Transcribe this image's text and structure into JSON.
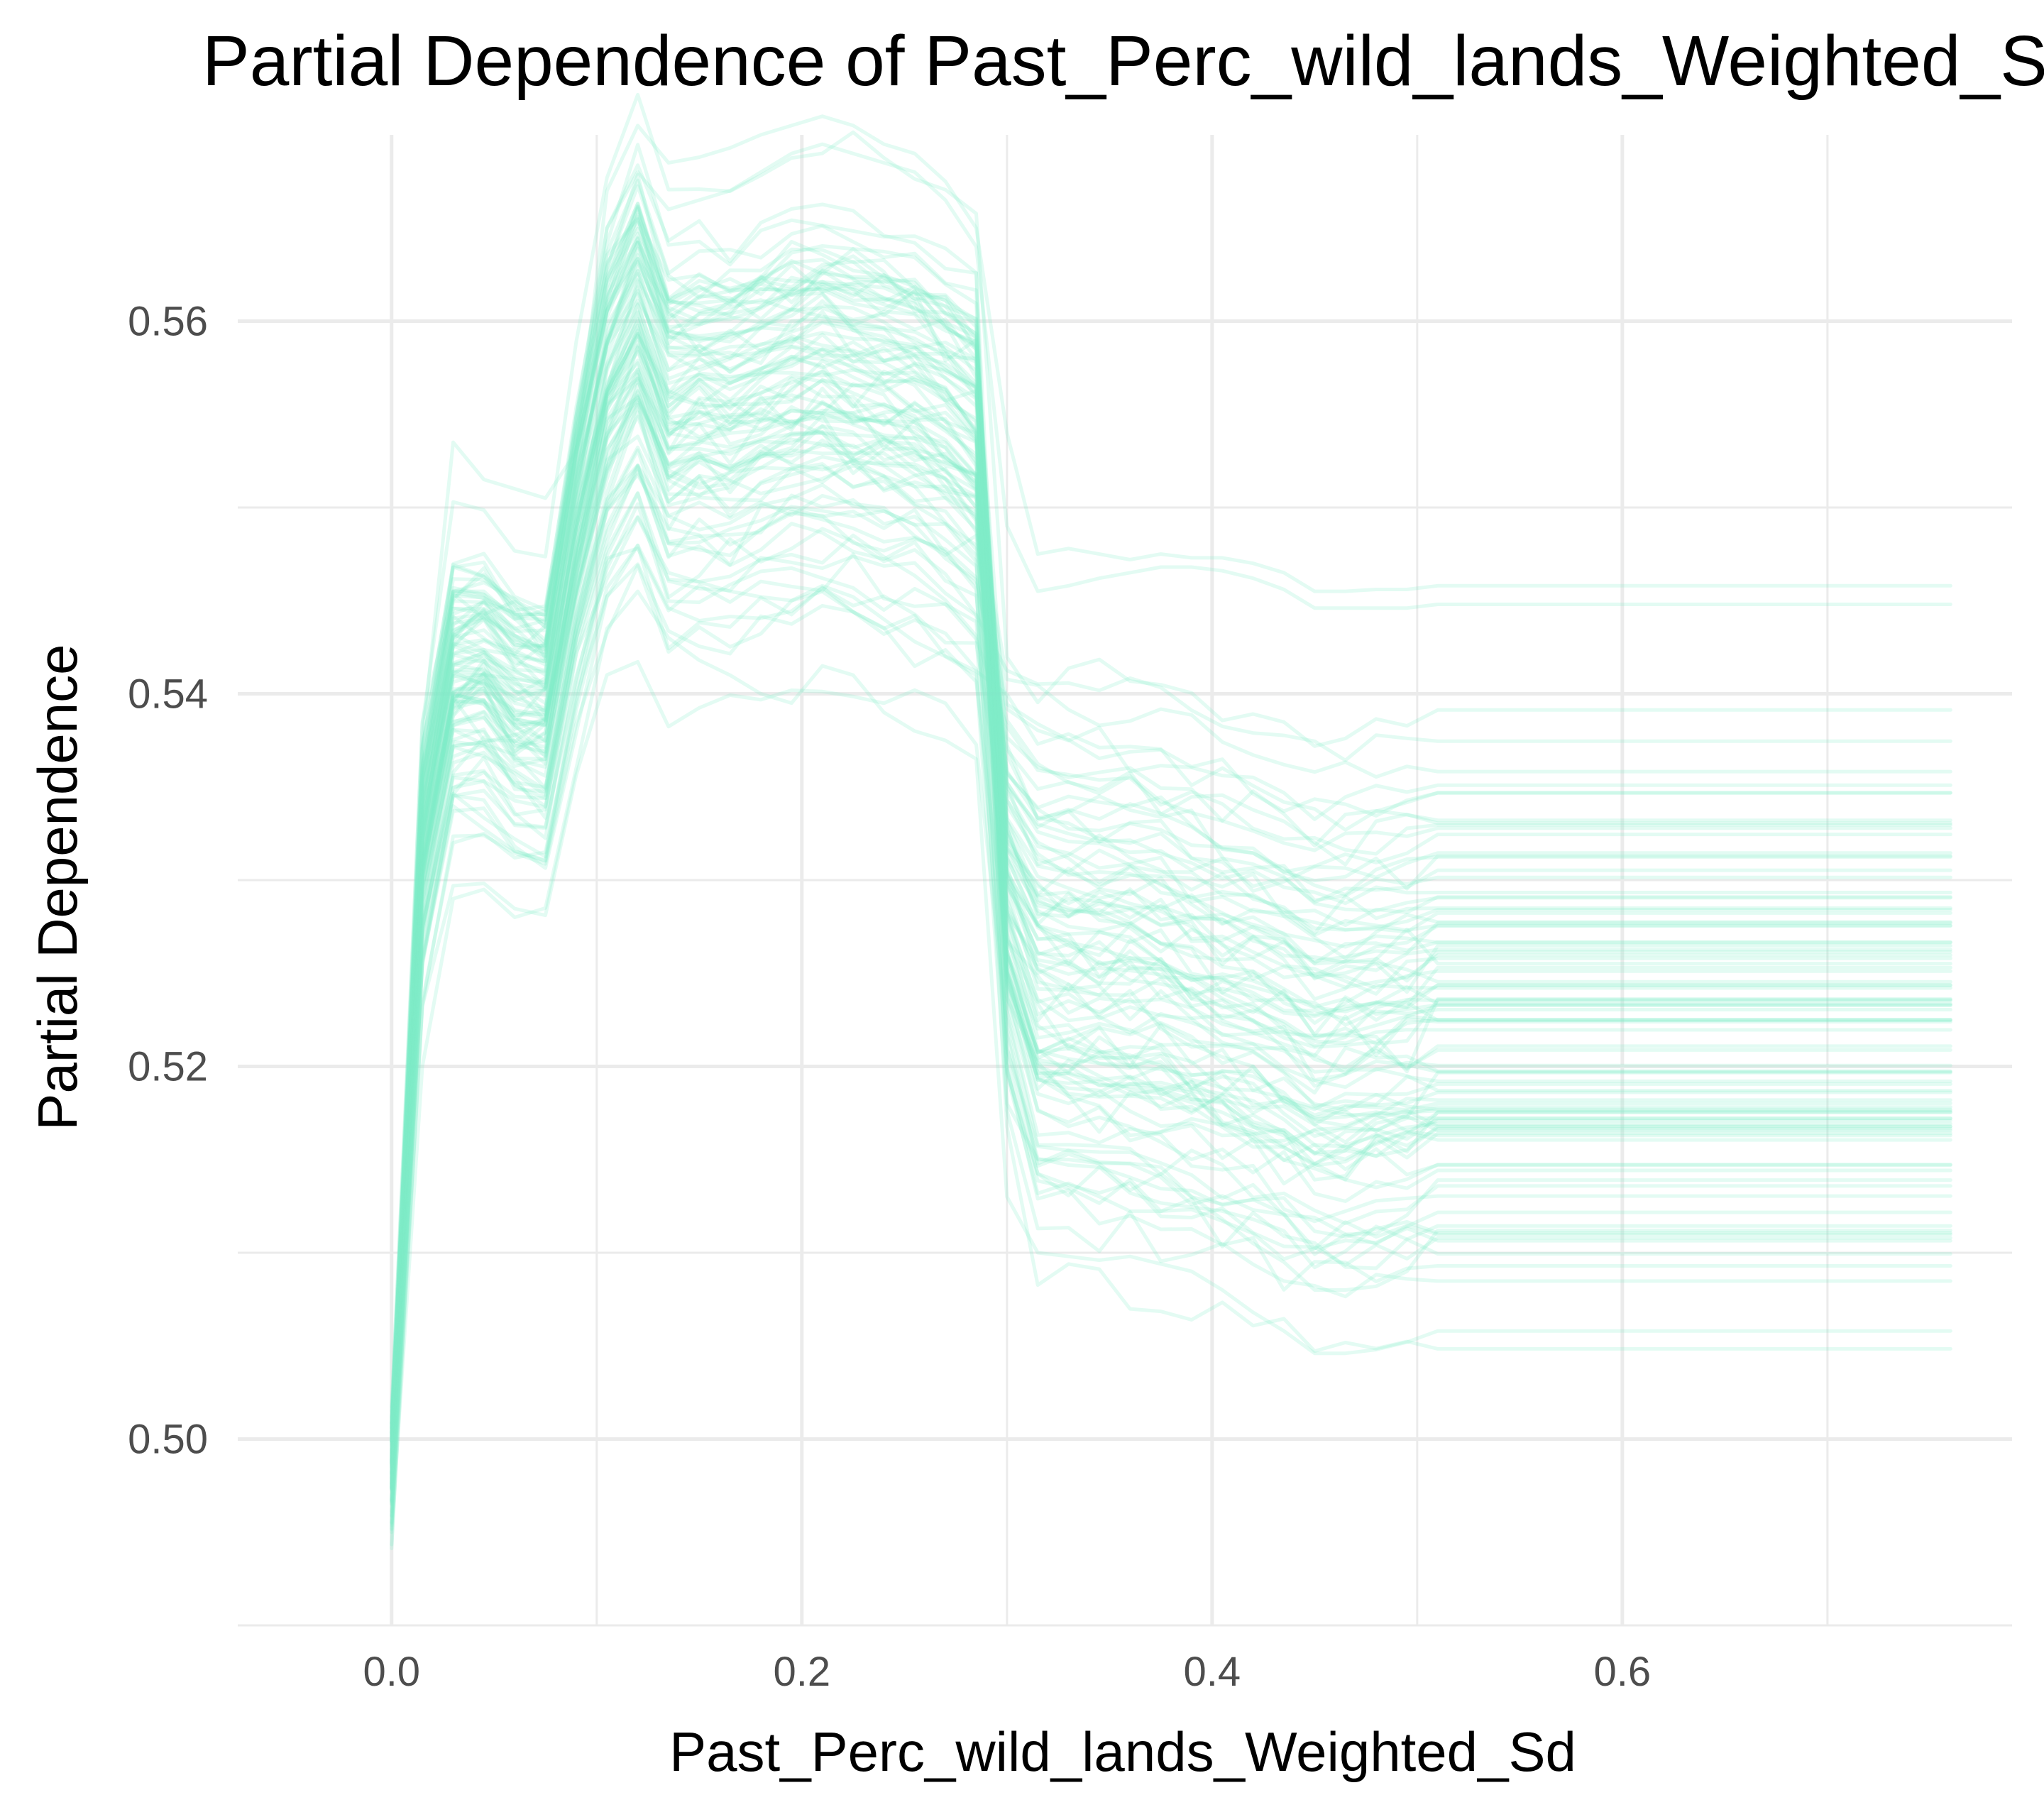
{
  "chart_data": {
    "type": "line",
    "title": "Partial Dependence of Past_Perc_wild_lands_Weighted_Sd",
    "xlabel": "Past_Perc_wild_lands_Weighted_Sd",
    "ylabel": "Partial Dependence",
    "xlim": [
      -0.075,
      0.79
    ],
    "ylim": [
      0.49,
      0.57
    ],
    "x_ticks": [
      0.0,
      0.2,
      0.4,
      0.6
    ],
    "x_tick_labels": [
      "0.0",
      "0.2",
      "0.4",
      "0.6"
    ],
    "y_ticks": [
      0.5,
      0.52,
      0.54,
      0.56
    ],
    "y_tick_labels": [
      "0.50",
      "0.52",
      "0.54",
      "0.56"
    ],
    "grid": true,
    "legend": "none",
    "line_color": "#7fecc8",
    "line_opacity": 0.22,
    "n_lines": 100,
    "x": [
      0.0,
      0.015,
      0.03,
      0.045,
      0.06,
      0.075,
      0.09,
      0.105,
      0.12,
      0.135,
      0.15,
      0.165,
      0.18,
      0.195,
      0.21,
      0.225,
      0.24,
      0.255,
      0.27,
      0.285,
      0.3,
      0.315,
      0.33,
      0.345,
      0.36,
      0.375,
      0.39,
      0.405,
      0.42,
      0.435,
      0.45,
      0.465,
      0.48,
      0.495,
      0.51,
      0.76
    ],
    "average_curve": [
      0.4985,
      0.5315,
      0.5405,
      0.5408,
      0.5392,
      0.5387,
      0.548,
      0.5555,
      0.5588,
      0.5542,
      0.5548,
      0.5546,
      0.5552,
      0.5558,
      0.556,
      0.5556,
      0.5552,
      0.5548,
      0.554,
      0.5525,
      0.53,
      0.526,
      0.5258,
      0.5256,
      0.5254,
      0.525,
      0.5245,
      0.524,
      0.5236,
      0.523,
      0.522,
      0.5222,
      0.5224,
      0.5226,
      0.5232,
      0.5232
    ],
    "spread_profile": [
      0.003,
      0.006,
      0.007,
      0.0072,
      0.0072,
      0.0072,
      0.0085,
      0.01,
      0.011,
      0.0105,
      0.0105,
      0.0105,
      0.0105,
      0.0106,
      0.0107,
      0.0107,
      0.0106,
      0.0106,
      0.0105,
      0.0105,
      0.01,
      0.013,
      0.013,
      0.013,
      0.013,
      0.013,
      0.013,
      0.013,
      0.013,
      0.013,
      0.013,
      0.013,
      0.013,
      0.013,
      0.013,
      0.013
    ],
    "individual_curves": [
      {
        "y": [
          0.4965,
          0.5375,
          0.5535,
          0.5515,
          0.551,
          0.5505,
          0.553,
          0.567,
          0.5705,
          0.5685,
          0.5688,
          0.5693,
          0.57,
          0.5705,
          0.571,
          0.5705,
          0.5695,
          0.569,
          0.5675,
          0.565,
          0.554,
          0.5475,
          0.5478,
          0.5475,
          0.5472,
          0.5475,
          0.5473,
          0.5473,
          0.547,
          0.5465,
          0.5455,
          0.5455,
          0.5456,
          0.5456,
          0.5458,
          0.5458
        ]
      },
      {
        "y": [
          0.5,
          0.5385,
          0.5455,
          0.5455,
          0.544,
          0.5445,
          0.553,
          0.565,
          0.568,
          0.566,
          0.5665,
          0.567,
          0.568,
          0.569,
          0.5695,
          0.569,
          0.5685,
          0.568,
          0.5665,
          0.564,
          0.549,
          0.5455,
          0.5458,
          0.5462,
          0.5465,
          0.5468,
          0.5468,
          0.5466,
          0.5462,
          0.5456,
          0.5446,
          0.5446,
          0.5446,
          0.5446,
          0.5448,
          0.5448
        ]
      },
      {
        "y": [
          0.495,
          0.52,
          0.529,
          0.5295,
          0.528,
          0.5285,
          0.536,
          0.5435,
          0.5455,
          0.543,
          0.5418,
          0.541,
          0.54,
          0.5395,
          0.5415,
          0.541,
          0.539,
          0.538,
          0.5375,
          0.5365,
          0.513,
          0.51,
          0.5098,
          0.5096,
          0.5098,
          0.5094,
          0.509,
          0.508,
          0.5068,
          0.5058,
          0.5046,
          0.5046,
          0.5048,
          0.5052,
          0.5058,
          0.5058
        ]
      },
      {
        "y": [
          0.4955,
          0.5235,
          0.532,
          0.5325,
          0.5312,
          0.5315,
          0.5395,
          0.547,
          0.5495,
          0.5465,
          0.546,
          0.5455,
          0.5452,
          0.545,
          0.5458,
          0.5452,
          0.544,
          0.5428,
          0.542,
          0.541,
          0.518,
          0.515,
          0.515,
          0.5148,
          0.5148,
          0.5146,
          0.513,
          0.5118,
          0.5105,
          0.5095,
          0.508,
          0.508,
          0.5082,
          0.509,
          0.5112,
          0.5112
        ]
      }
    ]
  }
}
